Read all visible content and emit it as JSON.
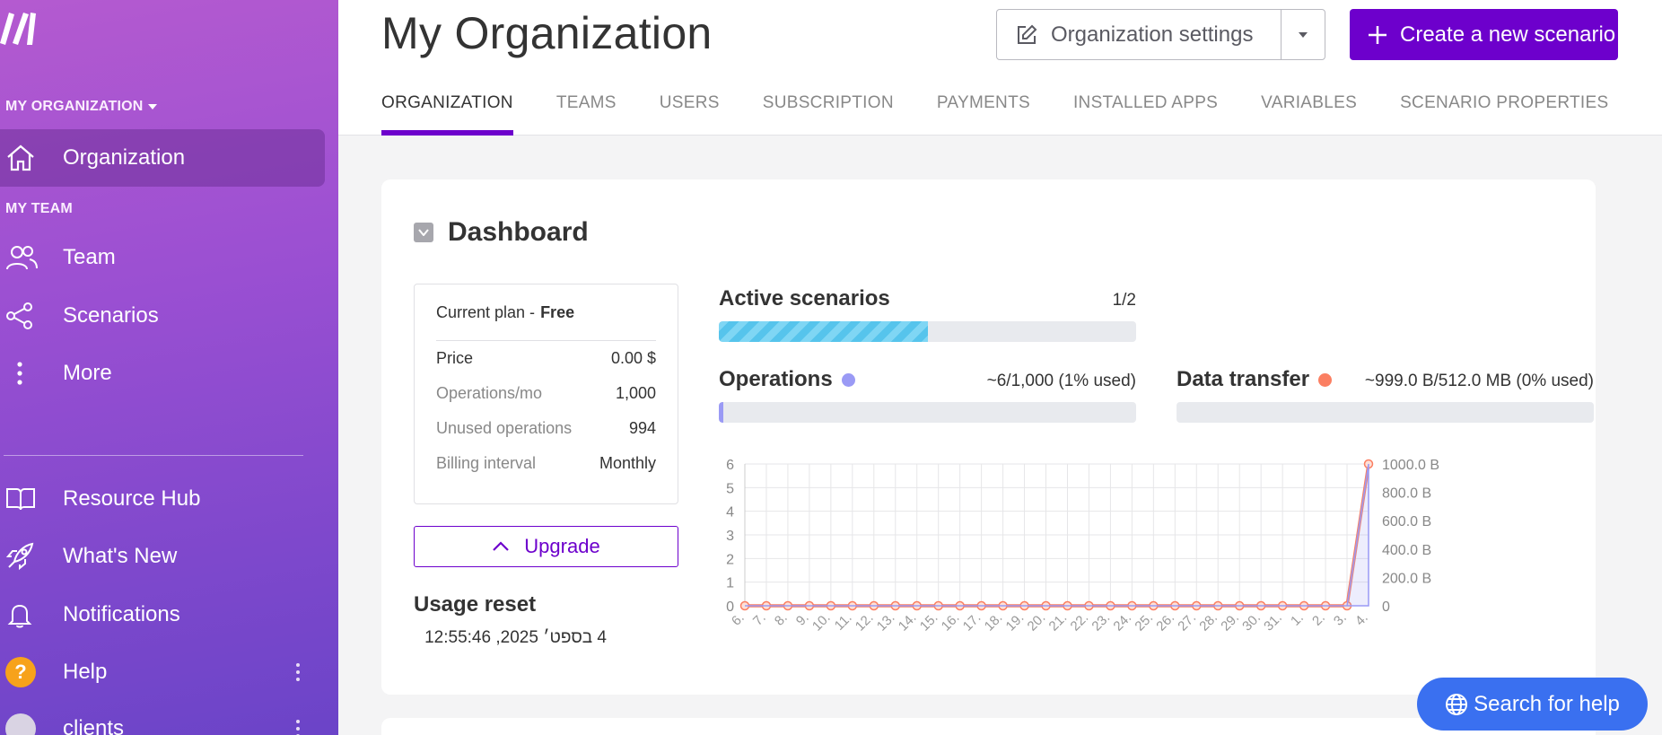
{
  "sidebar": {
    "org_section": "MY ORGANIZATION",
    "team_section": "MY TEAM",
    "items": [
      {
        "label": "Organization",
        "icon": "home-icon"
      },
      {
        "label": "Team",
        "icon": "users-icon"
      },
      {
        "label": "Scenarios",
        "icon": "share-icon"
      },
      {
        "label": "More",
        "icon": "more-vertical-icon"
      },
      {
        "label": "Resource Hub",
        "icon": "book-icon"
      },
      {
        "label": "What's New",
        "icon": "rocket-icon"
      },
      {
        "label": "Notifications",
        "icon": "bell-icon"
      },
      {
        "label": "Help",
        "icon": "help-icon",
        "badge": "?"
      },
      {
        "label": "clients",
        "icon": "avatar"
      }
    ]
  },
  "header": {
    "title": "My Organization",
    "settings_label": "Organization settings",
    "create_label": "Create a new scenario",
    "tabs": [
      "ORGANIZATION",
      "TEAMS",
      "USERS",
      "SUBSCRIPTION",
      "PAYMENTS",
      "INSTALLED APPS",
      "VARIABLES",
      "SCENARIO PROPERTIES"
    ],
    "active_tab": "ORGANIZATION"
  },
  "dashboard": {
    "title": "Dashboard",
    "plan": {
      "label": "Current plan -",
      "name": "Free",
      "rows": [
        {
          "key": "Price",
          "value": "0.00 $"
        },
        {
          "key": "Operations/mo",
          "value": "1,000"
        },
        {
          "key": "Unused operations",
          "value": "994"
        },
        {
          "key": "Billing interval",
          "value": "Monthly"
        }
      ]
    },
    "upgrade_label": "Upgrade",
    "usage_reset_title": "Usage reset",
    "usage_reset_value": "4 בספט׳ 2025, 12:55:46",
    "active_scenarios": {
      "label": "Active scenarios",
      "value": "1/2",
      "fraction": 0.5
    },
    "operations": {
      "label": "Operations",
      "value": "~6/1,000 (1% used)",
      "fraction": 0.01
    },
    "data_transfer": {
      "label": "Data transfer",
      "value": "~999.0 B/512.0 MB (0% used)",
      "fraction": 0.0
    }
  },
  "colors": {
    "accent": "#6d00cc",
    "operations": "#9a9af5",
    "data_transfer": "#fb7f62",
    "help": "#3a70f0"
  },
  "chart_data": {
    "type": "line",
    "x": [
      "6.",
      "7.",
      "8.",
      "9.",
      "10.",
      "11.",
      "12.",
      "13.",
      "14.",
      "15.",
      "16.",
      "17.",
      "18.",
      "19.",
      "20.",
      "21.",
      "22.",
      "23.",
      "24.",
      "25.",
      "26.",
      "27.",
      "28.",
      "29.",
      "30.",
      "31.",
      "1.",
      "2.",
      "3.",
      "4."
    ],
    "y_left_ticks": [
      "0",
      "1",
      "2",
      "3",
      "4",
      "5",
      "6"
    ],
    "y_left_lim": [
      0,
      6
    ],
    "y_right_ticks": [
      "0",
      "200.0 B",
      "400.0 B",
      "600.0 B",
      "800.0 B",
      "1000.0 B"
    ],
    "y_right_lim": [
      0,
      1000
    ],
    "grid": true,
    "series": [
      {
        "axis": "right",
        "color": "#fb7f62",
        "values": [
          0,
          0,
          0,
          0,
          0,
          0,
          0,
          0,
          0,
          0,
          0,
          0,
          0,
          0,
          0,
          0,
          0,
          0,
          0,
          0,
          0,
          0,
          0,
          0,
          0,
          0,
          0,
          0,
          0,
          1000
        ]
      },
      {
        "axis": "left",
        "color": "#9a9af5",
        "values": [
          0,
          0,
          0,
          0,
          0,
          0,
          0,
          0,
          0,
          0,
          0,
          0,
          0,
          0,
          0,
          0,
          0,
          0,
          0,
          0,
          0,
          0,
          0,
          0,
          0,
          0,
          0,
          0,
          0,
          6
        ]
      }
    ]
  },
  "help_button": "Search for help"
}
